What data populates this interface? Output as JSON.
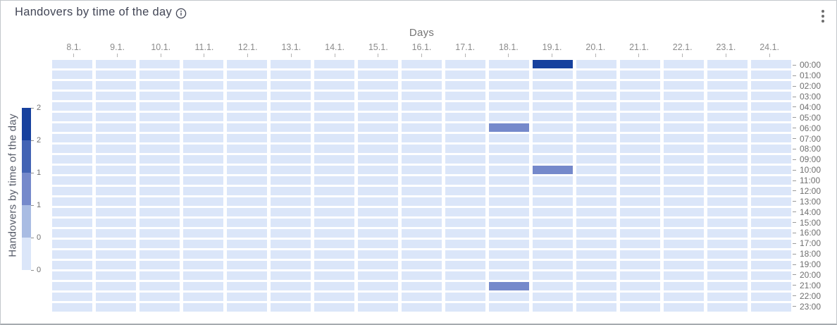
{
  "header": {
    "title": "Handovers by time of the day"
  },
  "menu": {
    "kebab_icon": "vertical-three-dots"
  },
  "chart_data": {
    "type": "heatmap",
    "title": "Handovers by time of the day",
    "xlabel": "Days",
    "ylabel": "Handovers by time of the day",
    "x_categories": [
      "8.1.",
      "9.1.",
      "10.1.",
      "11.1.",
      "12.1.",
      "13.1.",
      "14.1.",
      "15.1.",
      "16.1.",
      "17.1.",
      "18.1.",
      "19.1.",
      "20.1.",
      "21.1.",
      "22.1.",
      "23.1.",
      "24.1."
    ],
    "y_categories": [
      "00:00",
      "01:00",
      "02:00",
      "03:00",
      "04:00",
      "05:00",
      "06:00",
      "07:00",
      "08:00",
      "09:00",
      "10:00",
      "11:00",
      "12:00",
      "13:00",
      "14:00",
      "15:00",
      "16:00",
      "17:00",
      "18:00",
      "19:00",
      "20:00",
      "21:00",
      "22:00",
      "23:00"
    ],
    "default_value": 0,
    "nonzero_cells": [
      {
        "day": "19.1.",
        "time": "00:00",
        "value": 2
      },
      {
        "day": "18.1.",
        "time": "06:00",
        "value": 1
      },
      {
        "day": "19.1.",
        "time": "10:00",
        "value": 1
      },
      {
        "day": "18.1.",
        "time": "21:00",
        "value": 1
      }
    ],
    "value_colors": {
      "0": "#dbe6f9",
      "1": "#7589cb",
      "2": "#17419e"
    },
    "legend": {
      "range": [
        0,
        2
      ],
      "tick_labels": [
        "2",
        "2",
        "1",
        "1",
        "0",
        "0"
      ],
      "colors": [
        "#17419e",
        "#4263b4",
        "#7589cb",
        "#a9bce3",
        "#dbe6f9"
      ]
    },
    "layout": {
      "grid_on": false,
      "legend_position": "left",
      "y_axis_position": "right"
    }
  }
}
